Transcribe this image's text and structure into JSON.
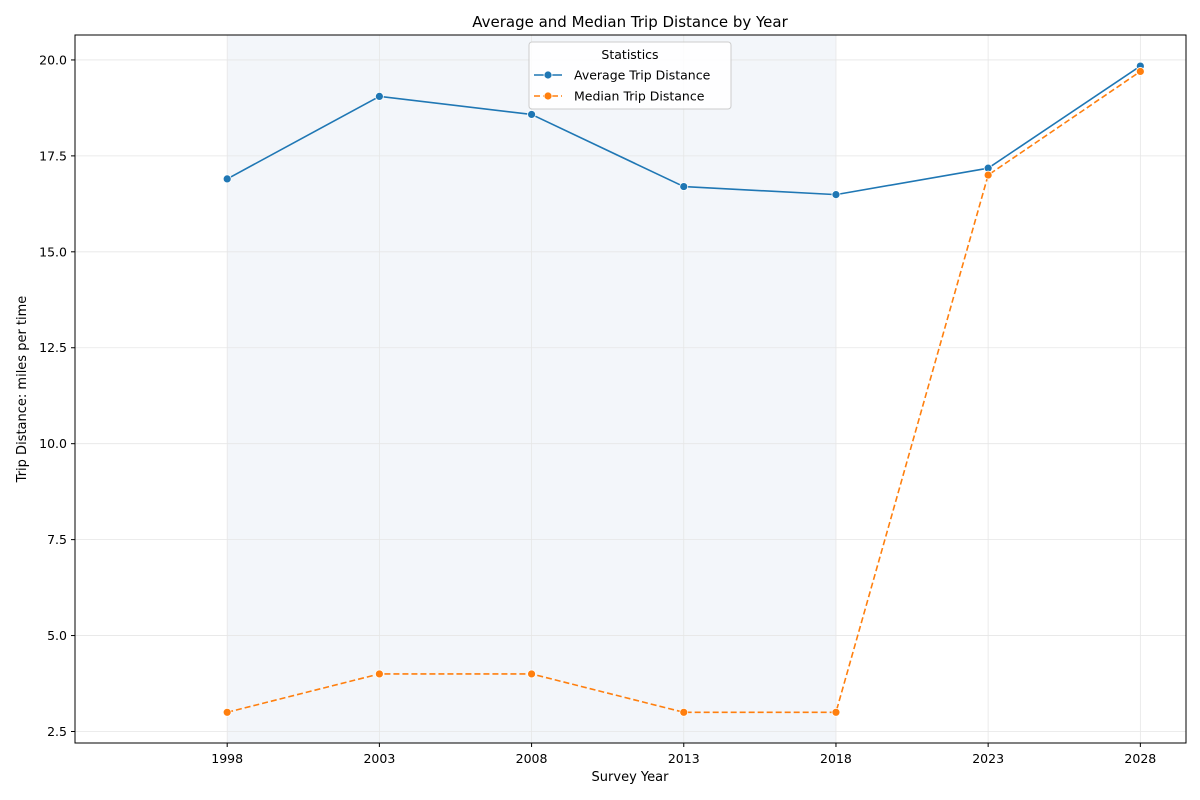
{
  "chart_data": {
    "type": "line",
    "title": "Average and Median Trip Distance by Year",
    "xlabel": "Survey Year",
    "ylabel": "Trip Distance: miles per time",
    "x": [
      1998,
      2003,
      2008,
      2013,
      2018,
      2023,
      2028
    ],
    "x_ticks": [
      "1998",
      "2003",
      "2008",
      "2013",
      "2018",
      "2023",
      "2028"
    ],
    "y_ticks": [
      "2.5",
      "5.0",
      "7.5",
      "10.0",
      "12.5",
      "15.0",
      "17.5",
      "20.0"
    ],
    "xlim": [
      1993,
      2029.5
    ],
    "ylim": [
      2.2,
      20.65
    ],
    "grid": true,
    "shaded_x_range": [
      1998,
      2018
    ],
    "legend": {
      "title": "Statistics",
      "placement": "upper center"
    },
    "series": [
      {
        "name": "Average Trip Distance",
        "color": "#1f77b4",
        "style": "solid",
        "values": [
          16.9,
          19.05,
          18.58,
          16.7,
          16.49,
          17.18,
          19.84
        ]
      },
      {
        "name": "Median Trip Distance",
        "color": "#ff7f0e",
        "style": "dashed",
        "values": [
          3.0,
          4.0,
          4.0,
          3.0,
          3.0,
          17.0,
          19.7
        ]
      }
    ]
  }
}
